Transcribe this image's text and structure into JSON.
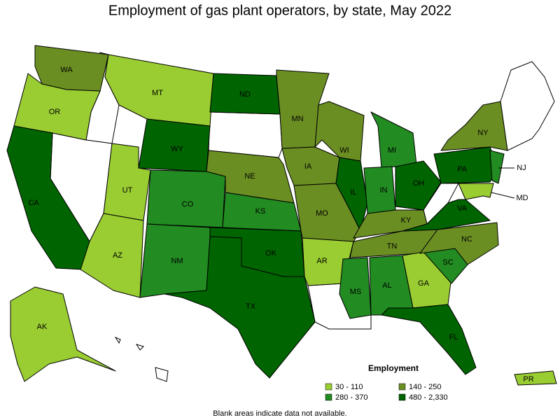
{
  "title": "Employment of gas plant operators, by state, May 2022",
  "states": [
    {
      "label": "WA",
      "range": "140 - 250"
    },
    {
      "label": "OR",
      "range": "30 - 110"
    },
    {
      "label": "CA",
      "range": "480 - 2,330"
    },
    {
      "label": "MT",
      "range": "30 - 110"
    },
    {
      "label": "WY",
      "range": "480 - 2,330"
    },
    {
      "label": "UT",
      "range": "30 - 110"
    },
    {
      "label": "AZ",
      "range": "30 - 110"
    },
    {
      "label": "CO",
      "range": "280 - 370"
    },
    {
      "label": "NM",
      "range": "280 - 370"
    },
    {
      "label": "ND",
      "range": "480 - 2,330"
    },
    {
      "label": "NE",
      "range": "140 - 250"
    },
    {
      "label": "KS",
      "range": "280 - 370"
    },
    {
      "label": "OK",
      "range": "480 - 2,330"
    },
    {
      "label": "TX",
      "range": "480 - 2,330"
    },
    {
      "label": "MN",
      "range": "140 - 250"
    },
    {
      "label": "IA",
      "range": "140 - 250"
    },
    {
      "label": "MO",
      "range": "140 - 250"
    },
    {
      "label": "AR",
      "range": "30 - 110"
    },
    {
      "label": "WI",
      "range": "140 - 250"
    },
    {
      "label": "IL",
      "range": "480 - 2,330"
    },
    {
      "label": "MI",
      "range": "280 - 370"
    },
    {
      "label": "IN",
      "range": "280 - 370"
    },
    {
      "label": "OH",
      "range": "480 - 2,330"
    },
    {
      "label": "KY",
      "range": "140 - 250"
    },
    {
      "label": "TN",
      "range": "140 - 250"
    },
    {
      "label": "MS",
      "range": "280 - 370"
    },
    {
      "label": "AL",
      "range": "280 - 370"
    },
    {
      "label": "GA",
      "range": "30 - 110"
    },
    {
      "label": "FL",
      "range": "480 - 2,330"
    },
    {
      "label": "SC",
      "range": "280 - 370"
    },
    {
      "label": "NC",
      "range": "140 - 250"
    },
    {
      "label": "VA",
      "range": "480 - 2,330"
    },
    {
      "label": "PA",
      "range": "480 - 2,330"
    },
    {
      "label": "NY",
      "range": "140 - 250"
    },
    {
      "label": "NJ",
      "range": "280 - 370"
    },
    {
      "label": "MD",
      "range": "30 - 110"
    },
    {
      "label": "AK",
      "range": "30 - 110"
    },
    {
      "label": "PR",
      "range": "30 - 110"
    }
  ],
  "legend": {
    "title": "Employment",
    "classes": [
      {
        "label": "30 - 110",
        "color": "#9acd32"
      },
      {
        "label": "140 - 250",
        "color": "#6b8e23"
      },
      {
        "label": "280 - 370",
        "color": "#228b22"
      },
      {
        "label": "480 - 2,330",
        "color": "#006400"
      }
    ]
  },
  "footnote": "Blank areas indicate data not available."
}
